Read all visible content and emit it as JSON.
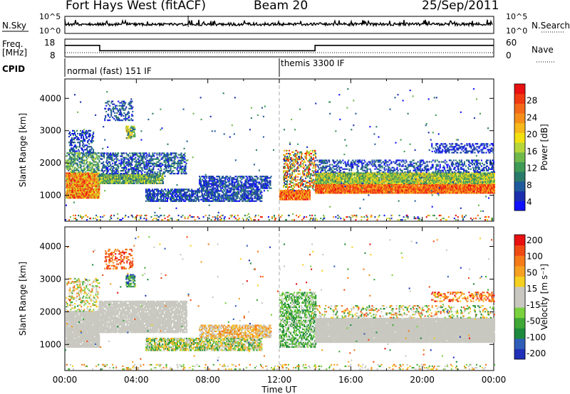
{
  "header": {
    "title": "Fort Hays West (fitACF)",
    "beam": "Beam 20",
    "date": "25/Sep/2011"
  },
  "left_labels": {
    "nsky": "N.Sky",
    "freq_line1": "Freq.",
    "freq_line2": "[MHz]",
    "cpid": "CPID"
  },
  "right_labels": {
    "nsearch": "N.Search",
    "nave": "Nave"
  },
  "cpid_segments": [
    {
      "label": "normal (fast) 151 IF",
      "start": "00:00"
    },
    {
      "label": "themis 3300 IF",
      "start": "12:00"
    }
  ],
  "chart_data": [
    {
      "name": "noise",
      "type": "line",
      "left_axis_ticks": [
        "10^5",
        "10^0"
      ],
      "right_axis_ticks": [
        "10^5",
        "10^0"
      ],
      "series": [
        {
          "name": "N.Sky"
        },
        {
          "name": "N.Search"
        }
      ]
    },
    {
      "name": "frequency",
      "type": "line",
      "left_axis_ticks": [
        "18",
        "8"
      ],
      "right_axis_ticks": [
        "60",
        "0"
      ],
      "series": [
        {
          "name": "Freq.",
          "x": [
            "00:00",
            "01:57",
            "01:57",
            "14:00",
            "14:00",
            "24:00"
          ],
          "y": [
            14.5,
            14.5,
            11.5,
            11.5,
            14.5,
            14.5
          ]
        },
        {
          "name": "Nave",
          "x": [
            "00:00",
            "24:00"
          ],
          "y": [
            12,
            12
          ]
        }
      ]
    },
    {
      "name": "power",
      "type": "heatmap",
      "ylabel": "Slant Range [km]",
      "y_ticks": [
        1000,
        2000,
        3000,
        4000
      ],
      "ylim": [
        200,
        4600
      ],
      "xlim_hours": [
        0,
        24
      ],
      "colorbar": {
        "label": "Power [dB]",
        "ticks": [
          "4",
          "8",
          "12",
          "16",
          "20",
          "24",
          "28"
        ],
        "colors": [
          "#1010ff",
          "#1b2fae",
          "#1f5a9c",
          "#2a7a6a",
          "#3f9a56",
          "#6fb84a",
          "#b5d63a",
          "#f2e010",
          "#f6b81a",
          "#f58f1a",
          "#f46a1a",
          "#f03a12",
          "#e81010"
        ]
      }
    },
    {
      "name": "velocity",
      "type": "heatmap",
      "ylabel": "Slant Range [km]",
      "xlabel": "Time UT",
      "x_ticks": [
        "00:00",
        "04:00",
        "08:00",
        "12:00",
        "16:00",
        "20:00",
        "00:00"
      ],
      "y_ticks": [
        1000,
        2000,
        3000,
        4000
      ],
      "ylim": [
        200,
        4600
      ],
      "colorbar": {
        "label": "Velocity [m s⁻¹]",
        "ticks": [
          "200",
          "100",
          "50",
          "15",
          "-15",
          "-50",
          "-100",
          "-200"
        ],
        "colors": [
          "#2030b8",
          "#2f5eb8",
          "#1e8a3e",
          "#3fa836",
          "#7ad13e",
          "#c8c8c0",
          "#c8c8c0",
          "#f5d020",
          "#f5a020",
          "#f57a18",
          "#f04a14",
          "#e81010"
        ]
      }
    }
  ]
}
